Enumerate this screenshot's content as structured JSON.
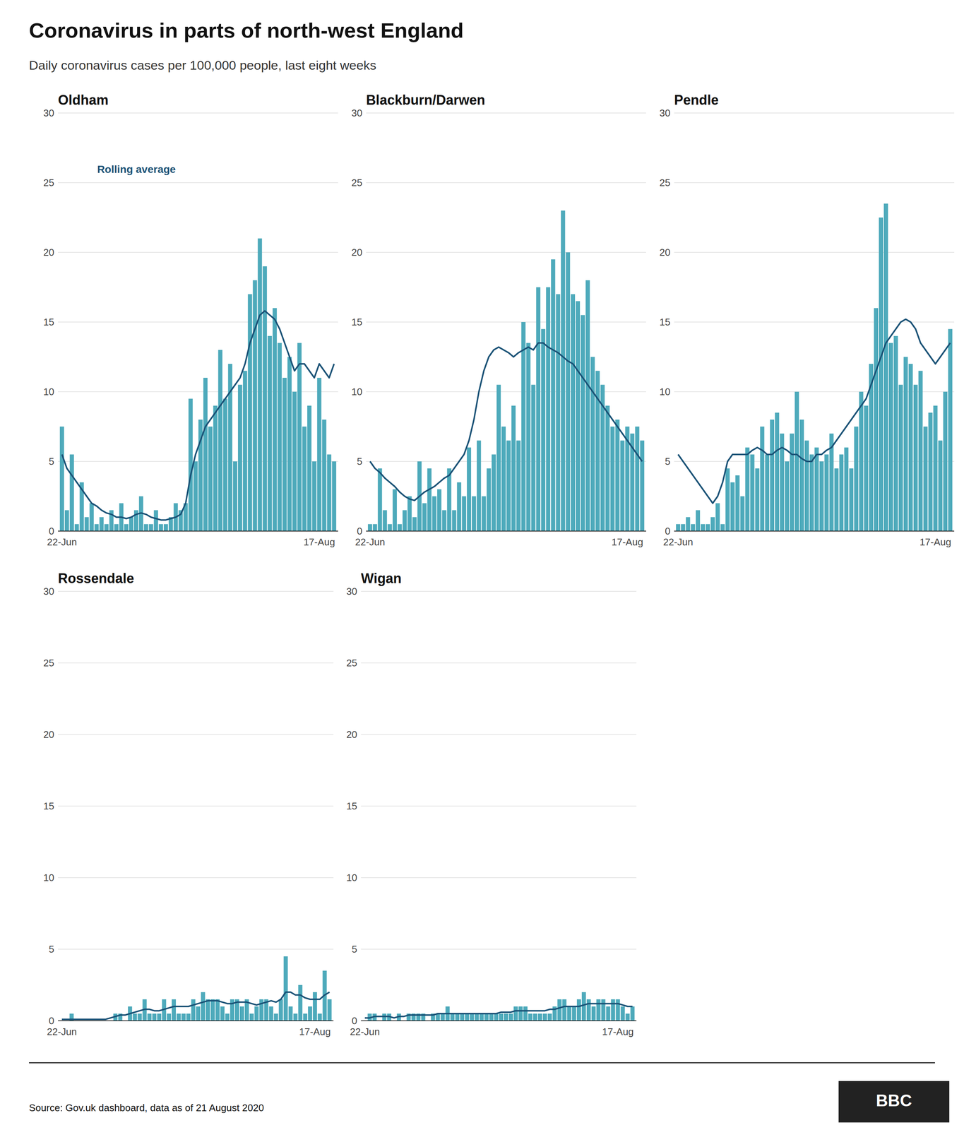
{
  "title": "Coronavirus in parts of north-west England",
  "subtitle": "Daily coronavirus cases per 100,000 people, last eight weeks",
  "source": "Source: Gov.uk dashboard, data as of 21 August 2020",
  "brand": "BBC",
  "chart_data": [
    {
      "type": "bar",
      "title": "Oldham",
      "categories": [
        "22-Jun",
        null,
        null,
        null,
        null,
        null,
        null,
        null,
        null,
        null,
        null,
        null,
        null,
        null,
        null,
        null,
        null,
        null,
        null,
        null,
        null,
        null,
        null,
        null,
        null,
        null,
        null,
        null,
        null,
        null,
        null,
        null,
        null,
        null,
        null,
        null,
        null,
        null,
        null,
        null,
        null,
        null,
        null,
        null,
        null,
        null,
        null,
        null,
        null,
        null,
        null,
        null,
        "17-Aug",
        null,
        null,
        null
      ],
      "series": [
        {
          "type": "bar",
          "color": "#4EAABB",
          "values": [
            7.5,
            1.5,
            5.5,
            0.5,
            3.5,
            1.0,
            2.0,
            0.5,
            1.0,
            0.5,
            1.5,
            0.5,
            2.0,
            0.5,
            1.0,
            1.5,
            2.5,
            0.5,
            0.5,
            1.5,
            0.5,
            0.5,
            1.0,
            2.0,
            1.5,
            2.0,
            9.5,
            5.0,
            8.0,
            11.0,
            7.5,
            9.0,
            13.0,
            9.5,
            12.0,
            5.0,
            10.5,
            11.5,
            17.0,
            18.0,
            21.0,
            19.0,
            14.0,
            16.0,
            13.5,
            11.0,
            12.5,
            10.0,
            13.5,
            7.5,
            9.0,
            5.0,
            11.0,
            8.0,
            5.5,
            5.0
          ]
        },
        {
          "type": "line",
          "color": "#1A5276",
          "values": [
            5.5,
            4.5,
            4.0,
            3.5,
            3.0,
            2.5,
            2.0,
            1.8,
            1.5,
            1.3,
            1.2,
            1.0,
            1.0,
            0.9,
            1.0,
            1.2,
            1.3,
            1.2,
            1.0,
            0.9,
            0.8,
            0.8,
            0.9,
            1.0,
            1.2,
            2.0,
            4.0,
            5.5,
            6.5,
            7.5,
            8.0,
            8.5,
            9.0,
            9.5,
            10.0,
            10.5,
            11.0,
            12.0,
            13.5,
            14.5,
            15.5,
            15.8,
            15.5,
            15.2,
            14.5,
            13.5,
            12.5,
            11.5,
            12.0,
            12.0,
            11.5,
            11.0,
            12.0,
            11.5,
            11.0,
            12.0
          ]
        }
      ],
      "annotations": [
        {
          "text": "Rolling average",
          "color": "#1A5276"
        }
      ],
      "ylim": [
        0,
        30
      ],
      "yticks": [
        0,
        5,
        10,
        15,
        20,
        25,
        30
      ],
      "grid": true
    },
    {
      "type": "bar",
      "title": "Blackburn/Darwen",
      "categories": [
        "22-Jun",
        null,
        null,
        null,
        null,
        null,
        null,
        null,
        null,
        null,
        null,
        null,
        null,
        null,
        null,
        null,
        null,
        null,
        null,
        null,
        null,
        null,
        null,
        null,
        null,
        null,
        null,
        null,
        null,
        null,
        null,
        null,
        null,
        null,
        null,
        null,
        null,
        null,
        null,
        null,
        null,
        null,
        null,
        null,
        null,
        null,
        null,
        null,
        null,
        null,
        null,
        null,
        "17-Aug",
        null,
        null,
        null
      ],
      "series": [
        {
          "type": "bar",
          "color": "#4EAABB",
          "values": [
            0.5,
            0.5,
            4.5,
            1.5,
            0.5,
            3.0,
            0.5,
            1.5,
            2.5,
            1.0,
            5.0,
            2.0,
            4.5,
            2.5,
            3.0,
            1.5,
            4.5,
            1.5,
            3.5,
            2.5,
            6.0,
            2.5,
            6.5,
            2.5,
            4.5,
            5.5,
            10.5,
            7.5,
            6.5,
            9.0,
            6.5,
            15.0,
            13.5,
            10.5,
            17.5,
            14.5,
            17.5,
            19.5,
            17.0,
            23.0,
            20.0,
            17.0,
            16.5,
            15.5,
            18.0,
            12.5,
            11.5,
            10.5,
            9.0,
            7.5,
            8.0,
            6.5,
            7.5,
            7.0,
            7.5,
            6.5
          ]
        },
        {
          "type": "line",
          "color": "#1A5276",
          "values": [
            5.0,
            4.5,
            4.2,
            3.8,
            3.5,
            3.2,
            2.8,
            2.5,
            2.3,
            2.2,
            2.5,
            2.8,
            3.0,
            3.2,
            3.5,
            3.8,
            4.0,
            4.5,
            5.0,
            5.5,
            6.5,
            8.0,
            10.0,
            11.5,
            12.5,
            13.0,
            13.2,
            13.0,
            12.8,
            12.5,
            12.8,
            13.0,
            13.2,
            13.0,
            13.5,
            13.5,
            13.2,
            13.0,
            12.8,
            12.5,
            12.2,
            12.0,
            11.5,
            11.0,
            10.5,
            10.0,
            9.5,
            9.0,
            8.5,
            8.0,
            7.5,
            7.0,
            6.5,
            6.0,
            5.5,
            5.0
          ]
        }
      ],
      "ylim": [
        0,
        30
      ],
      "yticks": [
        0,
        5,
        10,
        15,
        20,
        25,
        30
      ],
      "grid": true
    },
    {
      "type": "bar",
      "title": "Pendle",
      "categories": [
        "22-Jun",
        null,
        null,
        null,
        null,
        null,
        null,
        null,
        null,
        null,
        null,
        null,
        null,
        null,
        null,
        null,
        null,
        null,
        null,
        null,
        null,
        null,
        null,
        null,
        null,
        null,
        null,
        null,
        null,
        null,
        null,
        null,
        null,
        null,
        null,
        null,
        null,
        null,
        null,
        null,
        null,
        null,
        null,
        null,
        null,
        null,
        null,
        null,
        null,
        null,
        null,
        null,
        "17-Aug",
        null,
        null,
        null
      ],
      "series": [
        {
          "type": "bar",
          "color": "#4EAABB",
          "values": [
            0.5,
            0.5,
            1.0,
            0.5,
            1.5,
            0.5,
            0.5,
            1.0,
            2.0,
            0.5,
            4.5,
            3.5,
            4.0,
            2.5,
            6.0,
            5.5,
            4.5,
            7.5,
            5.5,
            8.0,
            8.5,
            7.0,
            5.0,
            7.0,
            10.0,
            8.0,
            6.5,
            5.5,
            6.0,
            5.0,
            5.5,
            7.0,
            4.5,
            5.5,
            6.0,
            4.5,
            7.5,
            10.0,
            9.0,
            12.0,
            16.0,
            22.5,
            23.5,
            13.5,
            14.0,
            10.5,
            12.5,
            12.0,
            10.5,
            11.5,
            7.5,
            8.5,
            9.0,
            6.5,
            10.0,
            14.5
          ]
        },
        {
          "type": "line",
          "color": "#1A5276",
          "values": [
            5.5,
            5.0,
            4.5,
            4.0,
            3.5,
            3.0,
            2.5,
            2.0,
            2.5,
            3.5,
            5.0,
            5.5,
            5.5,
            5.5,
            5.5,
            5.8,
            6.0,
            5.8,
            5.5,
            5.5,
            5.8,
            6.0,
            5.8,
            5.5,
            5.5,
            5.2,
            5.0,
            5.0,
            5.5,
            5.5,
            5.8,
            6.0,
            6.5,
            7.0,
            7.5,
            8.0,
            8.5,
            9.0,
            9.5,
            10.5,
            11.5,
            12.5,
            13.5,
            14.0,
            14.5,
            15.0,
            15.2,
            15.0,
            14.5,
            13.5,
            13.0,
            12.5,
            12.0,
            12.5,
            13.0,
            13.5
          ]
        }
      ],
      "ylim": [
        0,
        30
      ],
      "yticks": [
        0,
        5,
        10,
        15,
        20,
        25,
        30
      ],
      "grid": true
    },
    {
      "type": "bar",
      "title": "Rossendale",
      "categories": [
        "22-Jun",
        null,
        null,
        null,
        null,
        null,
        null,
        null,
        null,
        null,
        null,
        null,
        null,
        null,
        null,
        null,
        null,
        null,
        null,
        null,
        null,
        null,
        null,
        null,
        null,
        null,
        null,
        null,
        null,
        null,
        null,
        null,
        null,
        null,
        null,
        null,
        null,
        null,
        null,
        null,
        null,
        null,
        null,
        null,
        null,
        null,
        null,
        null,
        null,
        null,
        null,
        null,
        "17-Aug",
        null,
        null,
        null
      ],
      "series": [
        {
          "type": "bar",
          "color": "#4EAABB",
          "values": [
            0.0,
            0.0,
            0.5,
            0.0,
            0.0,
            0.0,
            0.0,
            0.0,
            0.0,
            0.0,
            0.0,
            0.5,
            0.5,
            0.0,
            1.0,
            0.5,
            0.5,
            1.5,
            0.5,
            0.5,
            0.5,
            1.5,
            0.5,
            1.5,
            0.5,
            0.5,
            0.5,
            1.5,
            1.0,
            2.0,
            1.5,
            1.5,
            1.5,
            1.0,
            0.5,
            1.5,
            1.5,
            1.0,
            1.5,
            0.5,
            1.0,
            1.5,
            1.5,
            1.0,
            0.5,
            1.5,
            4.5,
            1.0,
            0.5,
            2.5,
            0.5,
            1.0,
            2.0,
            0.5,
            3.5,
            1.5
          ]
        },
        {
          "type": "line",
          "color": "#1A5276",
          "values": [
            0.1,
            0.1,
            0.1,
            0.1,
            0.1,
            0.1,
            0.1,
            0.1,
            0.1,
            0.1,
            0.2,
            0.3,
            0.4,
            0.4,
            0.5,
            0.6,
            0.7,
            0.8,
            0.8,
            0.7,
            0.7,
            0.8,
            0.9,
            1.0,
            1.0,
            1.0,
            1.0,
            1.1,
            1.2,
            1.3,
            1.4,
            1.4,
            1.4,
            1.3,
            1.2,
            1.2,
            1.3,
            1.3,
            1.3,
            1.2,
            1.1,
            1.2,
            1.3,
            1.4,
            1.3,
            1.5,
            2.0,
            2.0,
            1.8,
            1.8,
            1.6,
            1.5,
            1.5,
            1.5,
            1.8,
            2.0
          ]
        }
      ],
      "ylim": [
        0,
        30
      ],
      "yticks": [
        0,
        5,
        10,
        15,
        20,
        25,
        30
      ],
      "grid": true
    },
    {
      "type": "bar",
      "title": "Wigan",
      "categories": [
        "22-Jun",
        null,
        null,
        null,
        null,
        null,
        null,
        null,
        null,
        null,
        null,
        null,
        null,
        null,
        null,
        null,
        null,
        null,
        null,
        null,
        null,
        null,
        null,
        null,
        null,
        null,
        null,
        null,
        null,
        null,
        null,
        null,
        null,
        null,
        null,
        null,
        null,
        null,
        null,
        null,
        null,
        null,
        null,
        null,
        null,
        null,
        null,
        null,
        null,
        null,
        null,
        null,
        "17-Aug",
        null,
        null,
        null
      ],
      "series": [
        {
          "type": "bar",
          "color": "#4EAABB",
          "values": [
            0.0,
            0.5,
            0.5,
            0.0,
            0.5,
            0.5,
            0.0,
            0.5,
            0.0,
            0.5,
            0.5,
            0.5,
            0.5,
            0.0,
            0.5,
            0.5,
            0.5,
            1.0,
            0.5,
            0.5,
            0.5,
            0.5,
            0.5,
            0.5,
            0.5,
            0.5,
            0.5,
            0.5,
            0.5,
            0.5,
            0.5,
            1.0,
            1.0,
            1.0,
            0.5,
            0.5,
            0.5,
            0.5,
            0.5,
            1.0,
            1.5,
            1.5,
            1.0,
            1.0,
            1.5,
            2.0,
            1.5,
            1.0,
            1.5,
            1.5,
            1.0,
            1.5,
            1.5,
            1.0,
            0.5,
            1.0
          ]
        },
        {
          "type": "line",
          "color": "#1A5276",
          "values": [
            0.2,
            0.2,
            0.3,
            0.3,
            0.3,
            0.3,
            0.2,
            0.3,
            0.3,
            0.4,
            0.4,
            0.4,
            0.4,
            0.4,
            0.4,
            0.5,
            0.5,
            0.5,
            0.5,
            0.5,
            0.5,
            0.5,
            0.5,
            0.5,
            0.5,
            0.5,
            0.5,
            0.5,
            0.6,
            0.6,
            0.6,
            0.7,
            0.7,
            0.7,
            0.7,
            0.7,
            0.7,
            0.7,
            0.8,
            0.8,
            0.9,
            1.0,
            1.0,
            1.0,
            1.0,
            1.1,
            1.2,
            1.2,
            1.2,
            1.2,
            1.2,
            1.2,
            1.2,
            1.1,
            1.0,
            1.0
          ]
        }
      ],
      "ylim": [
        0,
        30
      ],
      "yticks": [
        0,
        5,
        10,
        15,
        20,
        25,
        30
      ],
      "grid": true
    }
  ]
}
